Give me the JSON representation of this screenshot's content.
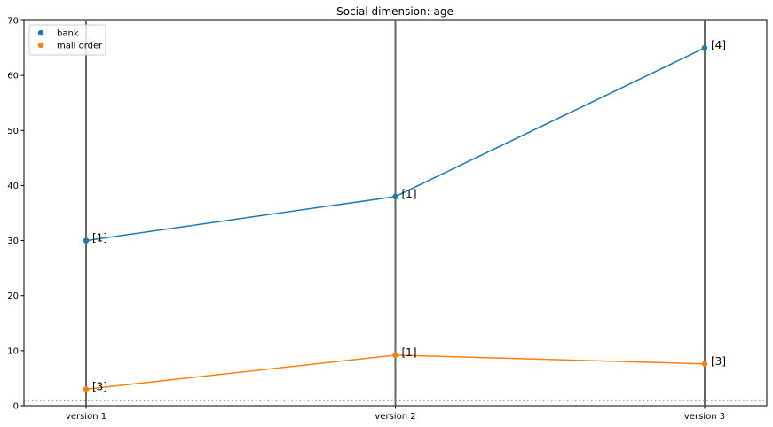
{
  "chart_data": {
    "type": "line",
    "title": "Social dimension: age",
    "xlabel": "",
    "ylabel": "",
    "categories": [
      "version 1",
      "version 2",
      "version 3"
    ],
    "ylim": [
      0,
      70
    ],
    "yticks": [
      0,
      10,
      20,
      30,
      40,
      50,
      60,
      70
    ],
    "grid": false,
    "legend_position": "top-left",
    "vertical_lines_at_categories": true,
    "reference_line": {
      "y": 1,
      "style": "dotted",
      "color": "#444444"
    },
    "series": [
      {
        "name": "bank",
        "color": "#1f77b4",
        "values": [
          30,
          38,
          65
        ],
        "labels": [
          "[1]",
          "[1]",
          "[4]"
        ]
      },
      {
        "name": "mail order",
        "color": "#ff7f0e",
        "values": [
          3,
          9.2,
          7.6
        ],
        "labels": [
          "[3]",
          "[1]",
          "[3]"
        ]
      }
    ]
  }
}
